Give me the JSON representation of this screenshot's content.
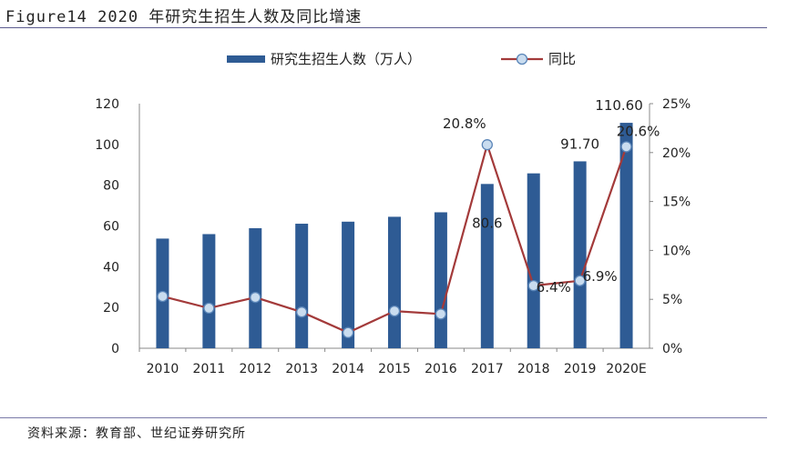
{
  "header": {
    "title": "Figure14 2020 年研究生招生人数及同比增速"
  },
  "footer": {
    "source": "资料来源：教育部、世纪证券研究所"
  },
  "chart_data": {
    "type": "bar",
    "categories": [
      "2010",
      "2011",
      "2012",
      "2013",
      "2014",
      "2015",
      "2016",
      "2017",
      "2018",
      "2019",
      "2020E"
    ],
    "series": [
      {
        "name": "研究生招生人数（万人）",
        "type": "bar",
        "axis": "left",
        "color": "#2e5b94",
        "values": [
          53.8,
          56.0,
          58.9,
          61.1,
          62.1,
          64.5,
          66.7,
          80.6,
          85.8,
          91.7,
          110.6
        ]
      },
      {
        "name": "同比",
        "type": "line",
        "axis": "right",
        "color": "#a33a3a",
        "marker_fill": "#c9dcef",
        "values": [
          5.3,
          4.1,
          5.2,
          3.7,
          1.6,
          3.8,
          3.5,
          20.8,
          6.4,
          6.9,
          20.6
        ]
      }
    ],
    "left_axis": {
      "ylim": [
        0,
        120
      ],
      "ticks": [
        "0",
        "20",
        "40",
        "60",
        "80",
        "100",
        "120"
      ]
    },
    "right_axis": {
      "ylim": [
        0,
        25
      ],
      "ticks": [
        "0%",
        "5%",
        "10%",
        "15%",
        "20%",
        "25%"
      ]
    },
    "legend_position": "top",
    "data_labels": [
      {
        "series": 0,
        "index": 7,
        "text": "80.6"
      },
      {
        "series": 0,
        "index": 9,
        "text": "91.70"
      },
      {
        "series": 0,
        "index": 10,
        "text": "110.60"
      },
      {
        "series": 1,
        "index": 7,
        "text": "20.8%"
      },
      {
        "series": 1,
        "index": 8,
        "text": "6.4%"
      },
      {
        "series": 1,
        "index": 9,
        "text": "6.9%"
      },
      {
        "series": 1,
        "index": 10,
        "text": "20.6%"
      }
    ]
  }
}
